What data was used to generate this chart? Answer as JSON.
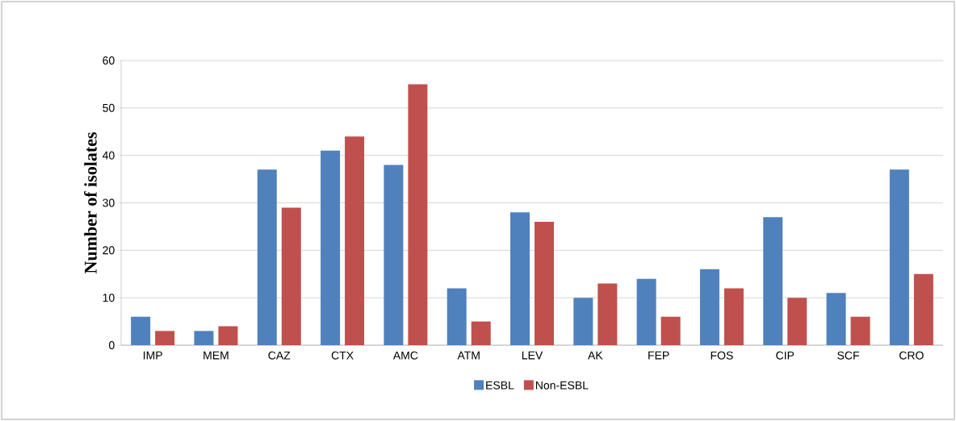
{
  "chart_data": {
    "type": "bar",
    "ylabel": "Number of isolates",
    "categories": [
      "IMP",
      "MEM",
      "CAZ",
      "CTX",
      "AMC",
      "ATM",
      "LEV",
      "AK",
      "FEP",
      "FOS",
      "CIP",
      "SCF",
      "CRO"
    ],
    "series": [
      {
        "name": "ESBL",
        "color": "#4f81bd",
        "values": [
          6,
          3,
          37,
          41,
          38,
          12,
          28,
          10,
          14,
          16,
          27,
          11,
          37
        ]
      },
      {
        "name": "Non-ESBL",
        "color": "#c0504d",
        "values": [
          3,
          4,
          29,
          44,
          55,
          5,
          26,
          13,
          6,
          12,
          10,
          6,
          15
        ]
      }
    ],
    "ylim": [
      0,
      60
    ],
    "yticks": [
      0,
      10,
      20,
      30,
      40,
      50,
      60
    ],
    "grid": "y",
    "legend": "bottom"
  }
}
